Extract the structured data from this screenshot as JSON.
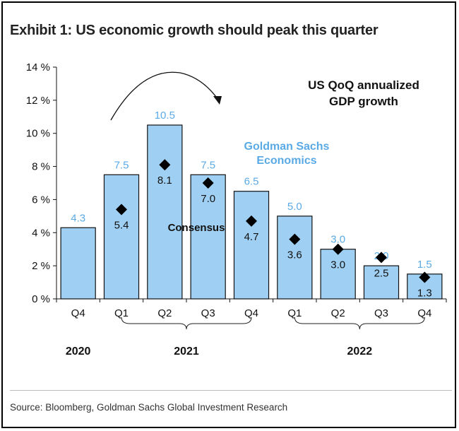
{
  "title": "Exhibit 1: US economic growth should peak this quarter",
  "source": "Source: Bloomberg, Goldman Sachs Global Investment Research",
  "chart_data": {
    "type": "bar",
    "categories": [
      "Q4",
      "Q1",
      "Q2",
      "Q3",
      "Q4",
      "Q1",
      "Q2",
      "Q3",
      "Q4"
    ],
    "series": [
      {
        "name": "Goldman Sachs Economics",
        "type": "bar",
        "values": [
          4.3,
          7.5,
          10.5,
          7.5,
          6.5,
          5.0,
          3.0,
          2.0,
          1.5
        ],
        "labels": [
          "4.3",
          "7.5",
          "10.5",
          "7.5",
          "6.5",
          "5.0",
          "3.0",
          "2.0",
          "1.5"
        ],
        "color": "#9fd0f3"
      },
      {
        "name": "Consensus",
        "type": "marker",
        "values": [
          null,
          5.4,
          8.1,
          7.0,
          4.7,
          3.6,
          3.0,
          2.5,
          1.3
        ],
        "labels": [
          "",
          "5.4",
          "8.1",
          "7.0",
          "4.7",
          "3.6",
          "3.0",
          "2.5",
          "1.3"
        ],
        "color": "#000000"
      }
    ],
    "year_groups": [
      {
        "label": "2020",
        "from": 0,
        "to": 0
      },
      {
        "label": "2021",
        "from": 1,
        "to": 4
      },
      {
        "label": "2022",
        "from": 5,
        "to": 8
      }
    ],
    "ylim": [
      0,
      14
    ],
    "yticks": [
      0,
      2,
      4,
      6,
      8,
      10,
      12,
      14
    ],
    "ytick_labels": [
      "0 %",
      "2 %",
      "4 %",
      "6 %",
      "8 %",
      "10 %",
      "12 %",
      "14 %"
    ],
    "annotations": {
      "chart_label_line1": "US QoQ annualized",
      "chart_label_line2": "GDP growth",
      "gs_label_line1": "Goldman Sachs",
      "gs_label_line2": "Economics",
      "consensus_label": "Consensus"
    },
    "grid": false
  }
}
